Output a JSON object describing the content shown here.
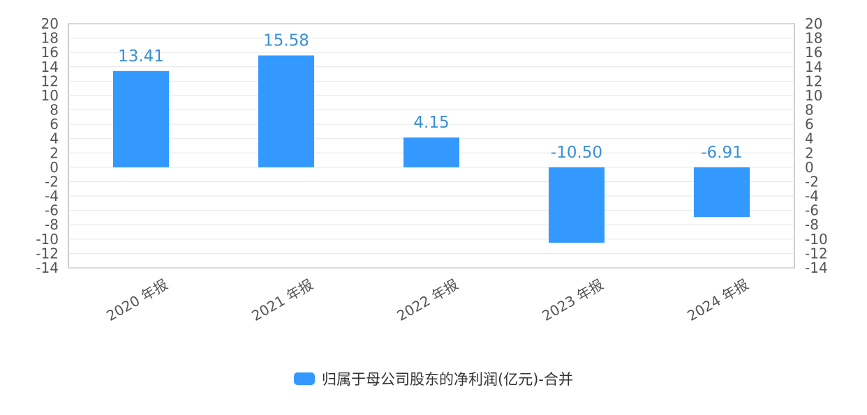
{
  "chart_data": {
    "type": "bar",
    "categories": [
      "2020 年报",
      "2021 年报",
      "2022 年报",
      "2023 年报",
      "2024 年报"
    ],
    "series": [
      {
        "name": "归属于母公司股东的净利润(亿元)-合并",
        "values": [
          13.41,
          15.58,
          4.15,
          -10.5,
          -6.91
        ],
        "color": "#3399ff"
      }
    ],
    "data_labels": [
      "13.41",
      "15.58",
      "4.15",
      "-10.50",
      "-6.91"
    ],
    "ylim": [
      -14,
      20
    ],
    "yticks": [
      "20",
      "18",
      "16",
      "14",
      "12",
      "10",
      "8",
      "6",
      "4",
      "2",
      "0",
      "-2",
      "-4",
      "-6",
      "-8",
      "-10",
      "-12",
      "-14"
    ],
    "ytick_values": [
      20,
      18,
      16,
      14,
      12,
      10,
      8,
      6,
      4,
      2,
      0,
      -2,
      -4,
      -6,
      -8,
      -10,
      -12,
      -14
    ],
    "secondary_axis": true,
    "grid": true,
    "legend_position": "bottom-center",
    "label_color": "#3a8fd8"
  }
}
